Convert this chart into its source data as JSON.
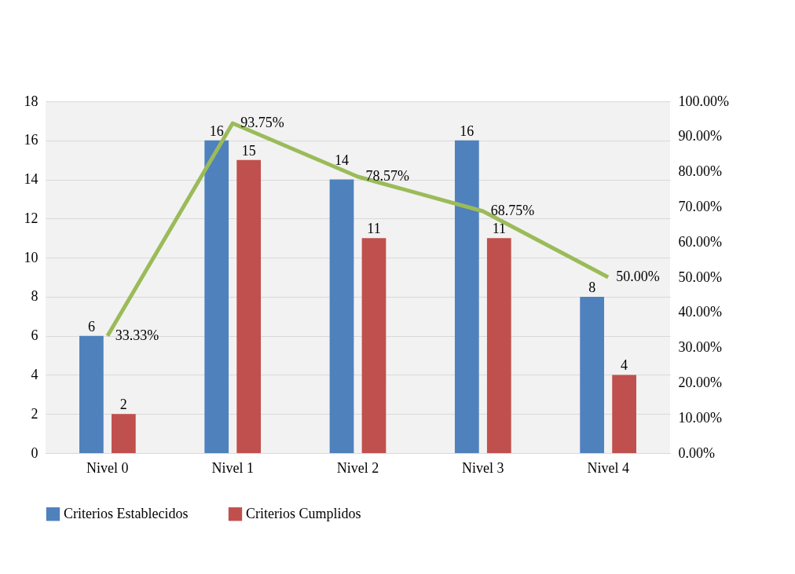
{
  "chart_data": {
    "type": "bar",
    "categories": [
      "Nivel 0",
      "Nivel 1",
      "Nivel 2",
      "Nivel 3",
      "Nivel 4"
    ],
    "series": [
      {
        "name": "Criterios Establecidos",
        "color": "#4f81bd",
        "values": [
          6,
          16,
          14,
          16,
          8
        ]
      },
      {
        "name": "Criterios Cumplidos",
        "color": "#c0504d",
        "values": [
          2,
          15,
          11,
          11,
          4
        ]
      },
      {
        "type": "line",
        "axis": "y2",
        "color": "#9bbb59",
        "values": [
          33.33,
          93.75,
          78.57,
          68.75,
          50.0
        ],
        "value_labels": [
          "33.33%",
          "93.75%",
          "78.57%",
          "68.75%",
          "50.00%"
        ]
      }
    ],
    "ylim": [
      0,
      18
    ],
    "yticks": [
      0,
      2,
      4,
      6,
      8,
      10,
      12,
      14,
      16,
      18
    ],
    "y2lim": [
      0,
      100
    ],
    "y2ticks": [
      {
        "value": 0,
        "label": "0.00%"
      },
      {
        "value": 10,
        "label": "10.00%"
      },
      {
        "value": 20,
        "label": "20.00%"
      },
      {
        "value": 30,
        "label": "30.00%"
      },
      {
        "value": 40,
        "label": "40.00%"
      },
      {
        "value": 50,
        "label": "50.00%"
      },
      {
        "value": 60,
        "label": "60.00%"
      },
      {
        "value": 70,
        "label": "70.00%"
      },
      {
        "value": 80,
        "label": "80.00%"
      },
      {
        "value": 90,
        "label": "90.00%"
      },
      {
        "value": 100,
        "label": "100.00%"
      }
    ],
    "data_labels": true,
    "grid": "y",
    "legend": "bottom"
  }
}
